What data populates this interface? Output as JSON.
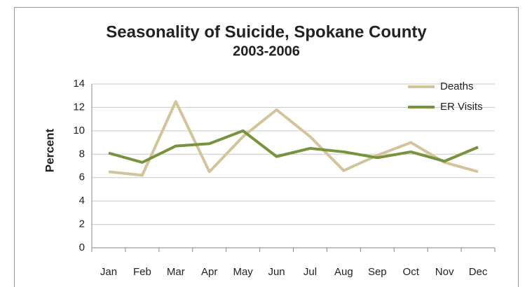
{
  "chart_data": {
    "type": "line",
    "title": "Seasonality of Suicide, Spokane County",
    "subtitle": "2003-2006",
    "y_label": "Percent",
    "categories": [
      "Jan",
      "Feb",
      "Mar",
      "Apr",
      "May",
      "Jun",
      "Jul",
      "Aug",
      "Sep",
      "Oct",
      "Nov",
      "Dec"
    ],
    "series": [
      {
        "name": "Deaths",
        "color": "#d4c49b",
        "values": [
          6.5,
          6.2,
          12.5,
          6.5,
          9.5,
          11.8,
          9.5,
          6.6,
          7.9,
          9.0,
          7.3,
          6.5
        ]
      },
      {
        "name": "ER Visits",
        "color": "#77933c",
        "values": [
          8.1,
          7.3,
          8.7,
          8.9,
          10.0,
          7.8,
          8.5,
          8.2,
          7.7,
          8.2,
          7.4,
          8.6
        ]
      }
    ],
    "ylim": [
      0,
      14
    ],
    "yticks": [
      0,
      2,
      4,
      6,
      8,
      10,
      12,
      14
    ],
    "grid": true,
    "legend": "top-right"
  }
}
